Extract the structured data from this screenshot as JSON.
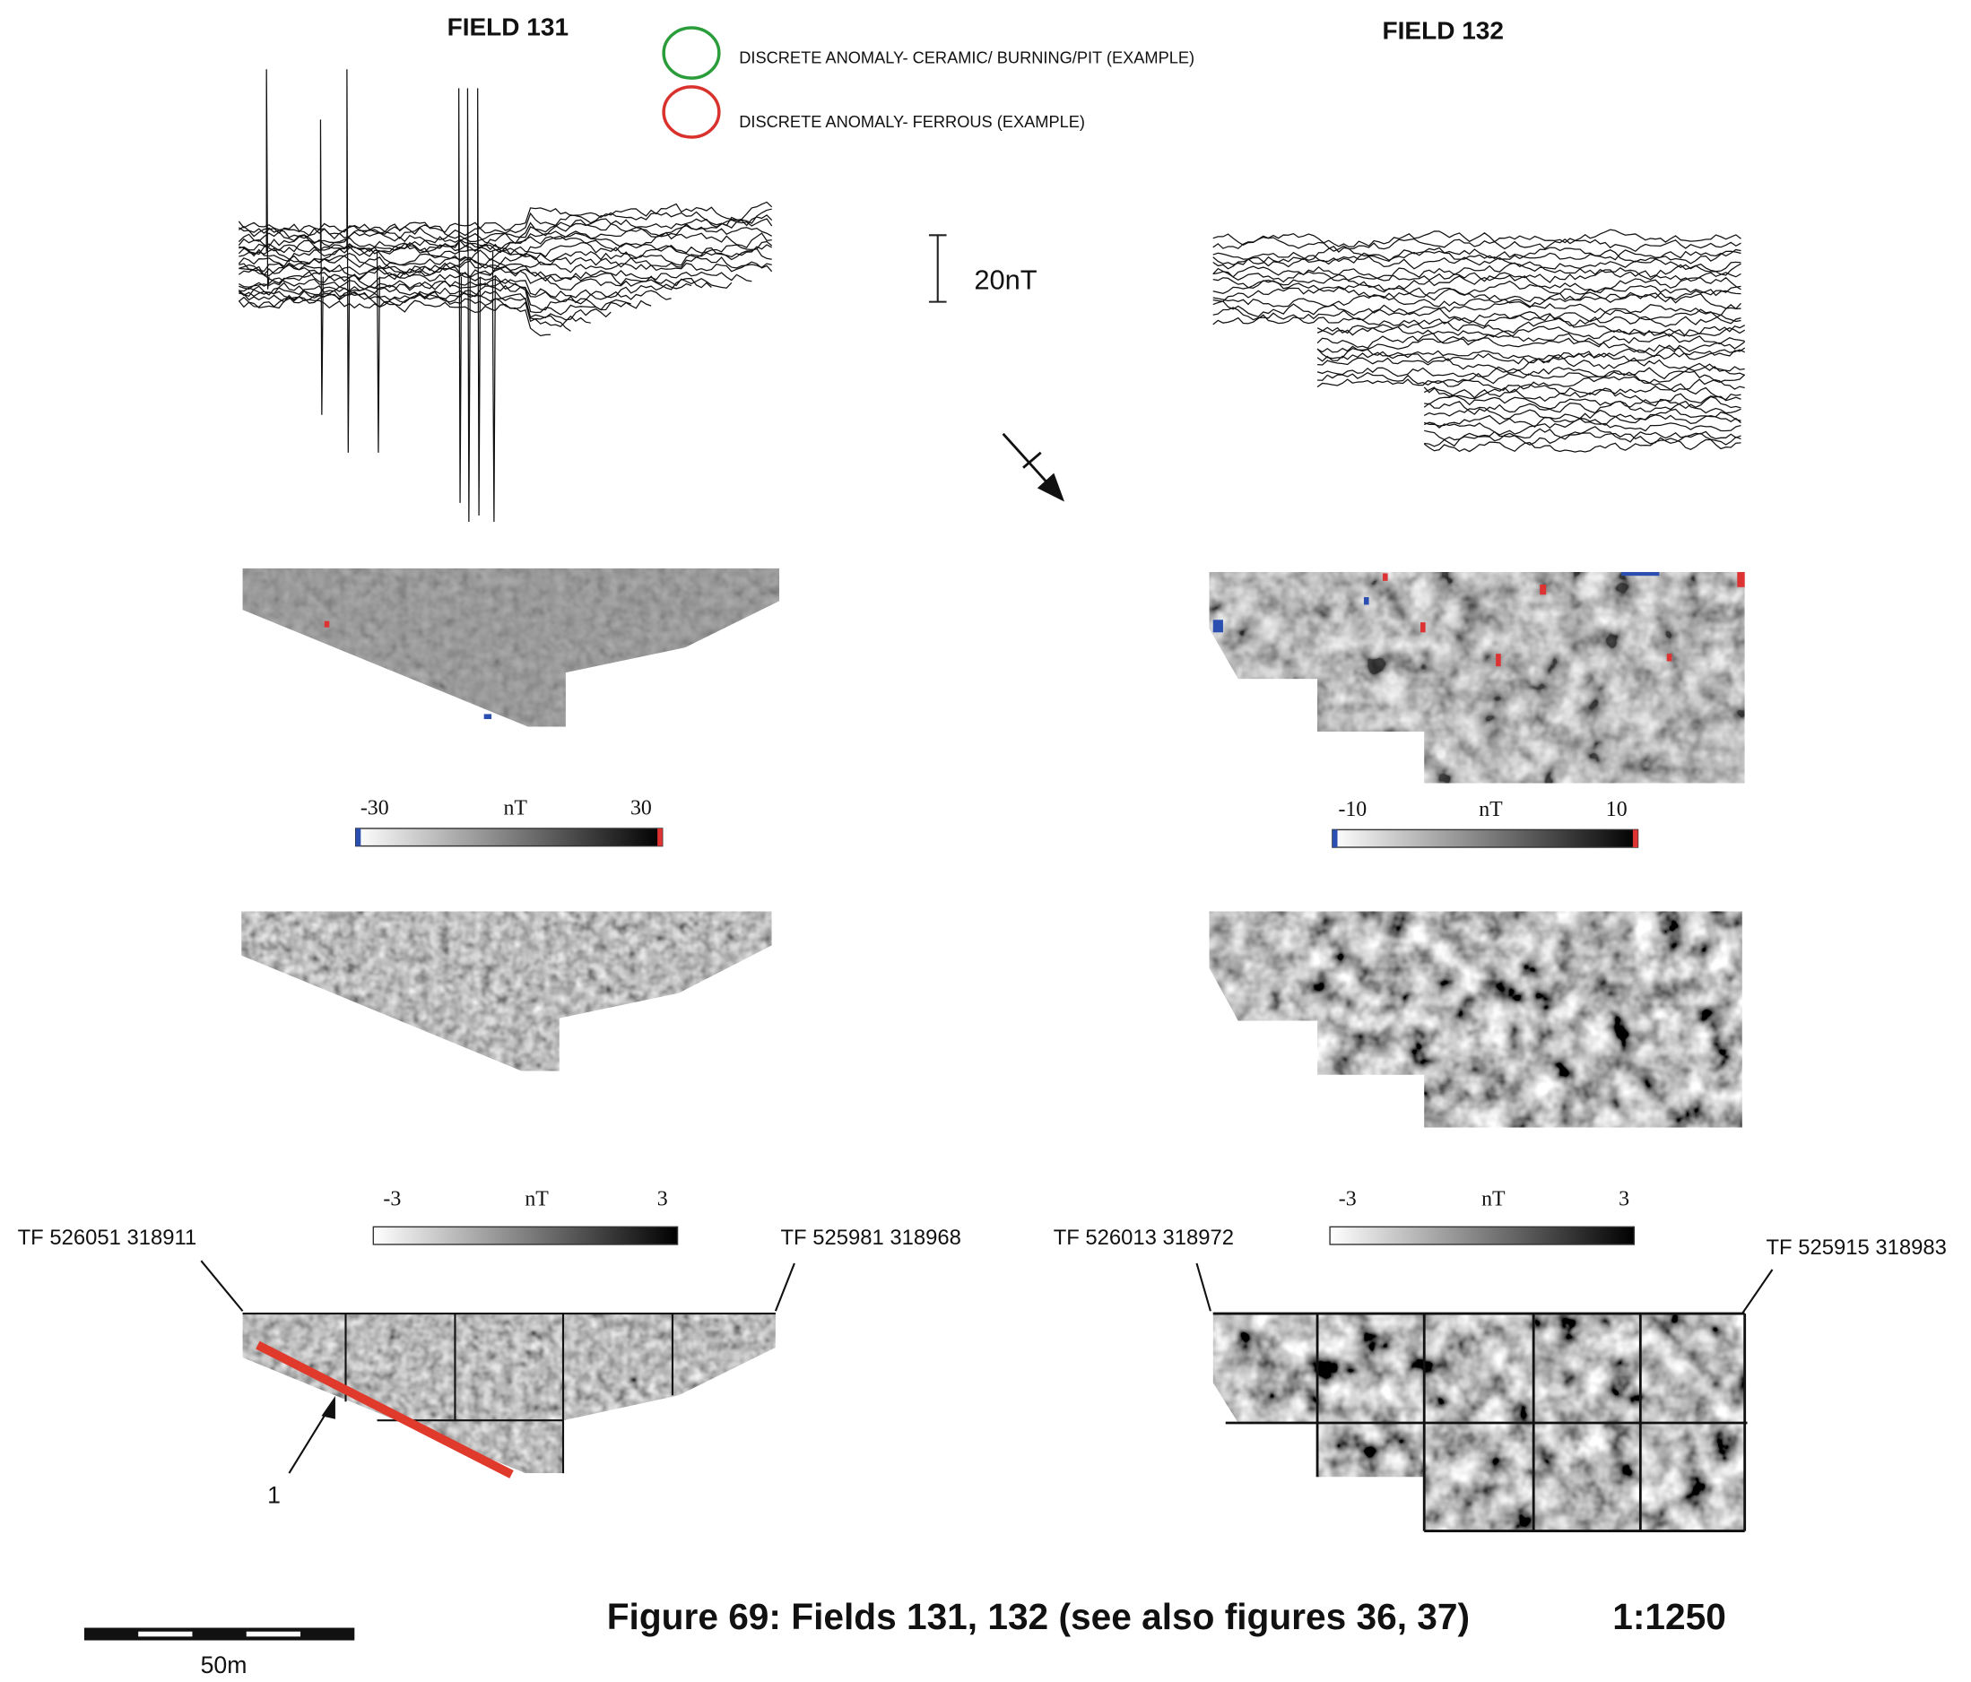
{
  "header": {
    "field_131": "FIELD 131",
    "field_132": "FIELD 132"
  },
  "legend": [
    {
      "label": "DISCRETE ANOMALY- CERAMIC/ BURNING/PIT (EXAMPLE)"
    },
    {
      "label": "DISCRETE ANOMALY- FERROUS (EXAMPLE)"
    }
  ],
  "trace_scale": "20nT",
  "colorbars": [
    {
      "min": "-30",
      "unit": "nT",
      "max": "30"
    },
    {
      "min": "-10",
      "unit": "nT",
      "max": "10"
    },
    {
      "min": "-3",
      "unit": "nT",
      "max": "3"
    },
    {
      "min": "-3",
      "unit": "nT",
      "max": "3"
    }
  ],
  "coordinates": [
    "TF 526051 318911",
    "TF 525981 318968",
    "TF 526013 318972",
    "TF 525915 318983"
  ],
  "annotation": "1",
  "scale_bar": "50m",
  "caption": "Figure 69: Fields 131, 132 (see also figures 36, 37)",
  "scale": "1:1250"
}
